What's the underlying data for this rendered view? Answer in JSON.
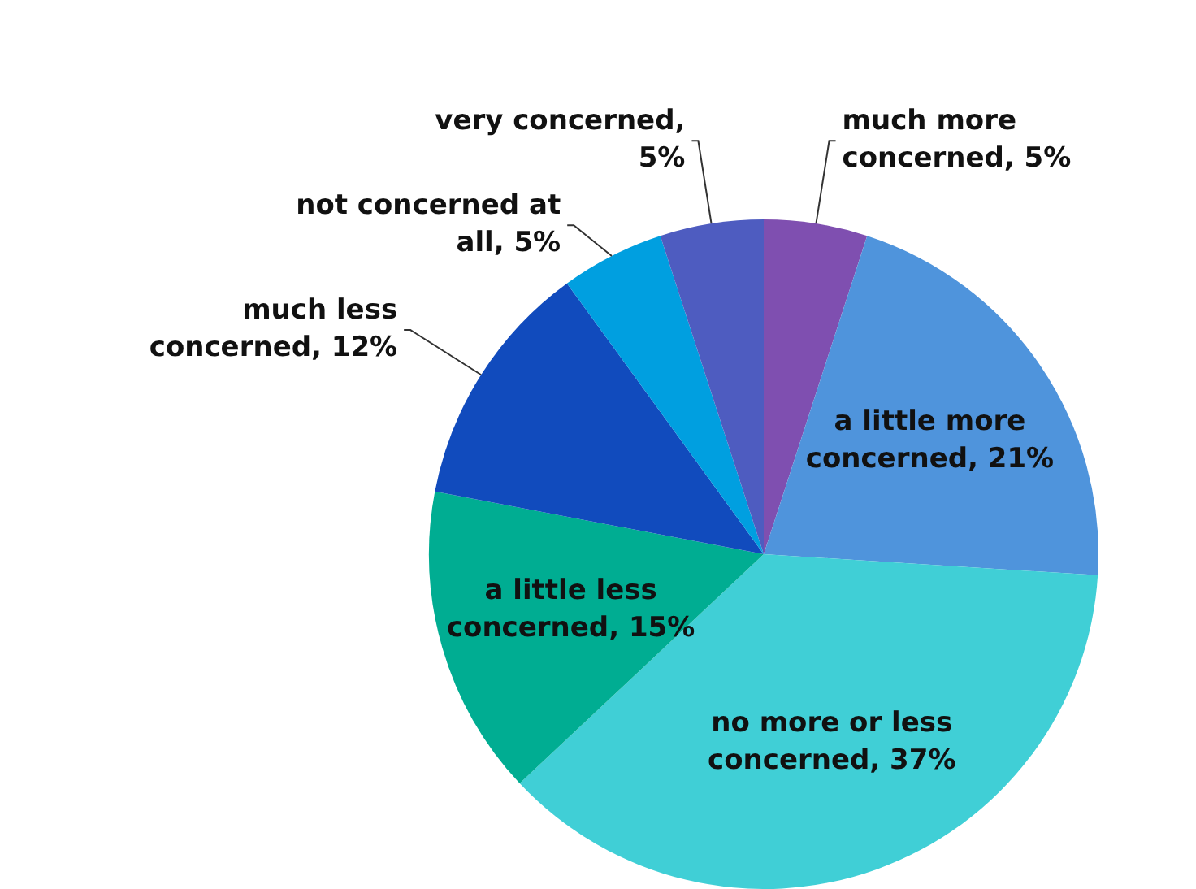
{
  "chart_data": {
    "type": "pie",
    "categories": [
      "much more concerned, 5%",
      "a little more concerned, 21%",
      "no more or less concerned, 37%",
      "a little less concerned, 15%",
      "much less concerned, 12%",
      "not concerned at all, 5%",
      "very concerned, 5%"
    ],
    "values": [
      5,
      21,
      37,
      15,
      12,
      5,
      5
    ],
    "colors": [
      "#7f4fb0",
      "#4f94dc",
      "#40cfd6",
      "#00ad92",
      "#114bbd",
      "#009fe0",
      "#4e5cc0"
    ],
    "legend": false
  }
}
